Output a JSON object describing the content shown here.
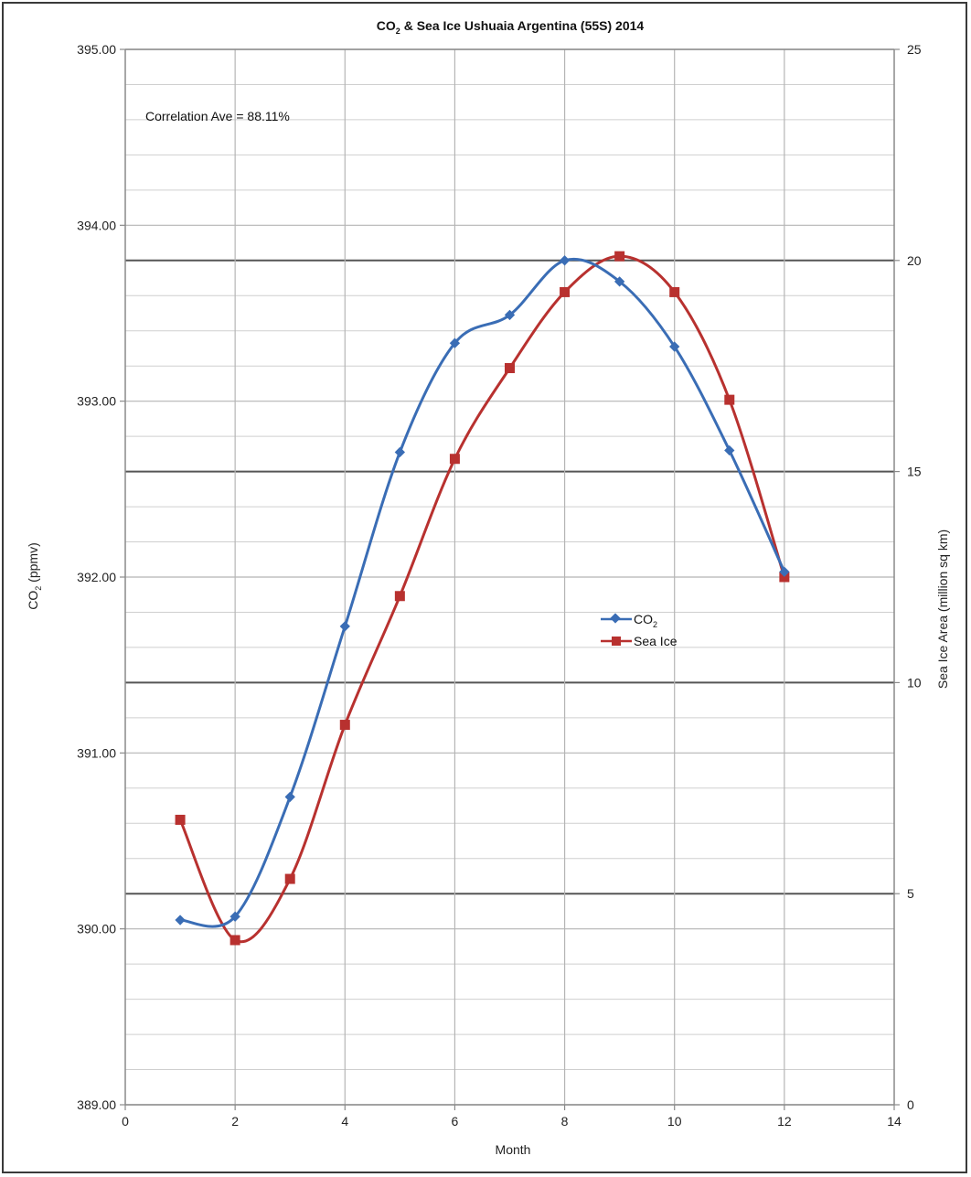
{
  "chart_data": {
    "type": "line",
    "title_main": "CO",
    "title_sub": "2",
    "title_rest": " & Sea Ice Ushuaia Argentina (55S) 2014",
    "xlabel": "Month",
    "ylabel_left_main": "CO",
    "ylabel_left_sub": "2",
    "ylabel_left_rest": " (ppmv)",
    "ylabel_right": "Sea Ice Area (million sq km)",
    "annotation": "Correlation Ave = 88.11%",
    "xlim": [
      0,
      14
    ],
    "xticks": [
      0,
      2,
      4,
      6,
      8,
      10,
      12,
      14
    ],
    "ylim_left": [
      389,
      395
    ],
    "yticks_left": [
      "389.00",
      "390.00",
      "391.00",
      "392.00",
      "393.00",
      "394.00",
      "395.00"
    ],
    "ylim_right": [
      0,
      25
    ],
    "yticks_right": [
      "0",
      "5",
      "10",
      "15",
      "20",
      "25"
    ],
    "legend_position": "center-right",
    "grid": true,
    "series": [
      {
        "name_main": "CO",
        "name_sub": "2",
        "axis": "left",
        "color": "#3a6db5",
        "marker": "diamond",
        "x": [
          1,
          2,
          3,
          4,
          5,
          6,
          7,
          8,
          9,
          10,
          11,
          12
        ],
        "values": [
          390.05,
          390.07,
          390.75,
          391.72,
          392.71,
          393.33,
          393.49,
          393.8,
          393.68,
          393.31,
          392.72,
          392.03
        ]
      },
      {
        "name": "Sea Ice",
        "axis": "right",
        "color": "#b8312f",
        "marker": "square",
        "x": [
          1,
          2,
          3,
          4,
          5,
          6,
          7,
          8,
          9,
          10,
          11,
          12
        ],
        "values": [
          6.75,
          3.9,
          5.35,
          9.0,
          12.05,
          15.3,
          17.45,
          19.25,
          20.1,
          19.25,
          16.7,
          12.5
        ]
      }
    ]
  }
}
